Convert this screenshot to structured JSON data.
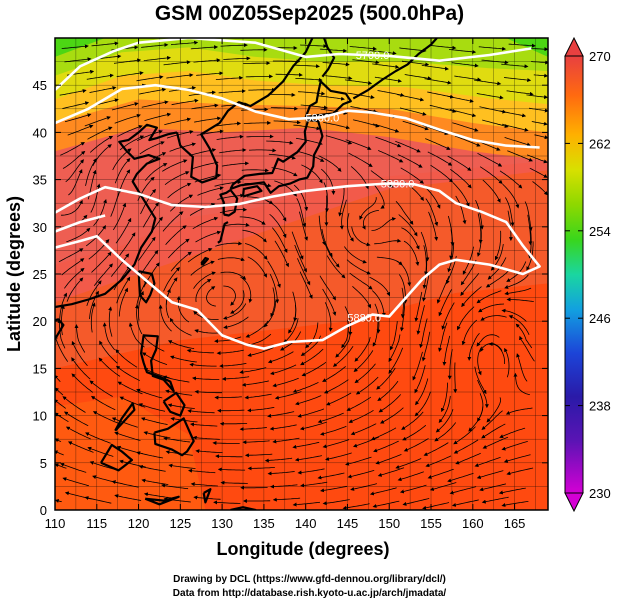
{
  "title": "GSM 00Z05Sep2025 (500.0hPa)",
  "credit": {
    "line1": "Drawing by DCL (https://www.gfd-dennou.org/library/dcl/)",
    "line2": "Data from http://database.rish.kyoto-u.ac.jp/arch/jmadata/"
  },
  "chart_data": {
    "type": "map",
    "variable": "temperature (K) with geopotential height contours and streamlines",
    "level": "500.0hPa",
    "xlabel": "Longitude (degrees)",
    "ylabel": "Latitude (degrees)",
    "xlim": [
      110,
      169
    ],
    "ylim": [
      0,
      50
    ],
    "xticks": [
      110,
      115,
      120,
      125,
      130,
      135,
      140,
      145,
      150,
      155,
      160,
      165
    ],
    "yticks": [
      0,
      5,
      10,
      15,
      20,
      25,
      30,
      35,
      40,
      45
    ],
    "colorbar": {
      "min": 230,
      "max": 270,
      "ticks": [
        230,
        238,
        246,
        254,
        262,
        270
      ],
      "colors": [
        "#d400d4",
        "#2a1aa8",
        "#1c44d8",
        "#12a0e0",
        "#1ad6a0",
        "#39d61c",
        "#c8e000",
        "#ffb000",
        "#ff6a10",
        "#e84040"
      ]
    },
    "contours": [
      {
        "label": "5700.0",
        "points": [
          [
            110,
            44.5
          ],
          [
            113,
            47
          ],
          [
            117,
            48.6
          ],
          [
            120,
            49.5
          ],
          [
            126,
            50
          ],
          [
            134,
            49.5
          ],
          [
            140,
            48
          ],
          [
            144,
            48.3
          ],
          [
            150,
            48.1
          ],
          [
            156,
            47.6
          ],
          [
            162,
            48.2
          ],
          [
            167,
            48.9
          ]
        ]
      },
      {
        "label": "5800.0",
        "points": [
          [
            110,
            41
          ],
          [
            114,
            42.5
          ],
          [
            118,
            44.6
          ],
          [
            122,
            45
          ],
          [
            126,
            44.5
          ],
          [
            130,
            43.6
          ],
          [
            134,
            42.2
          ],
          [
            138,
            41.4
          ],
          [
            142,
            41.6
          ],
          [
            145,
            42.3
          ],
          [
            148,
            42.1
          ],
          [
            152,
            41.5
          ],
          [
            156,
            40.3
          ],
          [
            160,
            39.2
          ],
          [
            164,
            38.6
          ],
          [
            168,
            38.4
          ]
        ]
      },
      {
        "label": "5880.0",
        "points": [
          [
            110,
            31.5
          ],
          [
            113,
            33
          ],
          [
            116,
            34.2
          ],
          [
            120,
            33.5
          ],
          [
            124,
            32.3
          ],
          [
            128,
            32.1
          ],
          [
            132,
            32.4
          ],
          [
            136,
            33.2
          ],
          [
            140,
            33.8
          ],
          [
            145,
            34.3
          ],
          [
            150,
            34.6
          ],
          [
            153,
            34.5
          ],
          [
            156,
            33.8
          ],
          [
            158,
            32.5
          ],
          [
            161,
            31.6
          ],
          [
            164,
            30.5
          ],
          [
            166,
            28
          ],
          [
            168,
            25.8
          ],
          [
            166,
            25
          ],
          [
            162,
            26
          ],
          [
            158,
            26.5
          ],
          [
            156,
            26
          ],
          [
            154,
            24.5
          ],
          [
            152,
            22.5
          ],
          [
            150,
            20.5
          ],
          [
            148,
            20.7
          ],
          [
            145,
            19.5
          ],
          [
            142,
            18
          ],
          [
            138,
            17.8
          ],
          [
            135,
            17.1
          ],
          [
            133,
            17.5
          ],
          [
            130,
            18.5
          ],
          [
            127,
            21.2
          ],
          [
            124,
            22
          ],
          [
            122,
            23.5
          ],
          [
            120,
            25
          ],
          [
            118,
            26.5
          ],
          [
            115,
            29
          ],
          [
            113,
            28.5
          ],
          [
            110,
            27.8
          ]
        ]
      },
      {
        "label": "5880.0",
        "points": [
          [
            110,
            29.5
          ],
          [
            113,
            30.5
          ],
          [
            116,
            31.2
          ]
        ]
      }
    ],
    "lows": [
      [
        114,
        31
      ],
      [
        145,
        29
      ],
      [
        160.5,
        17.5
      ]
    ],
    "highs": []
  }
}
